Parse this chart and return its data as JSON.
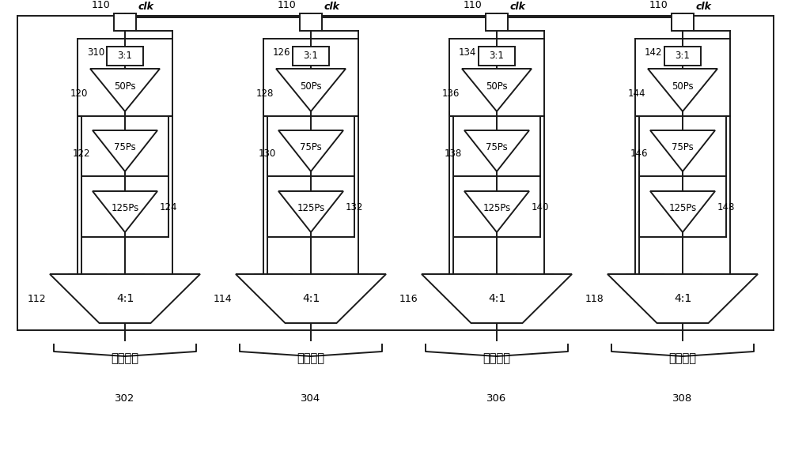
{
  "bg_color": "#ffffff",
  "line_color": "#1a1a1a",
  "text_color": "#000000",
  "fig_width": 10.0,
  "fig_height": 5.76,
  "channel_labels": [
    "112",
    "114",
    "116",
    "118"
  ],
  "channel_refs": [
    "302",
    "304",
    "306",
    "308"
  ],
  "clk_label": "clk",
  "mux_top_label": "3:1",
  "mux_bottom_label": "4:1",
  "delay_labels": [
    "50Ps",
    "75Ps",
    "125Ps"
  ],
  "channel_num_labels": [
    [
      "310",
      "120",
      "122",
      "124"
    ],
    [
      "126",
      "128",
      "130",
      "132"
    ],
    [
      "134",
      "136",
      "138",
      "140"
    ],
    [
      "142",
      "144",
      "146",
      "148"
    ]
  ],
  "brace_label": "偏移时钟"
}
